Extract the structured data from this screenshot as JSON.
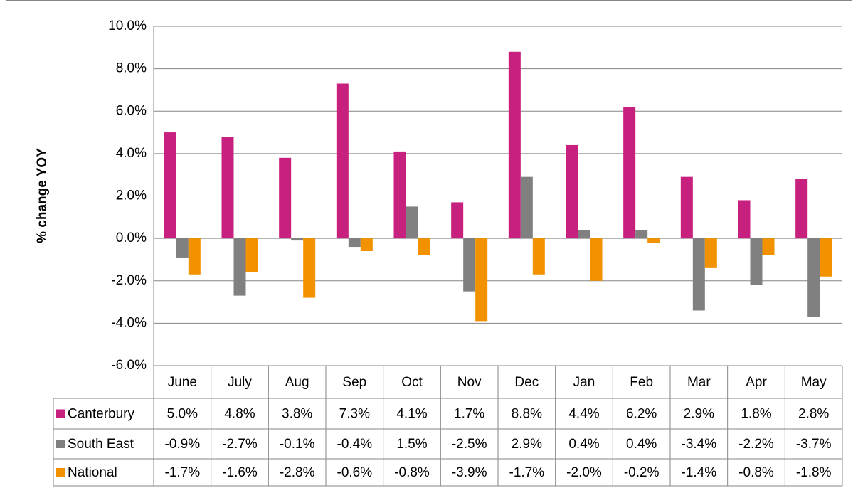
{
  "chart_data": {
    "type": "bar",
    "y_label": "% change YOY",
    "categories": [
      "June",
      "July",
      "Aug",
      "Sep",
      "Oct",
      "Nov",
      "Dec",
      "Jan",
      "Feb",
      "Mar",
      "Apr",
      "May"
    ],
    "series": [
      {
        "name": "Canterbury",
        "color": "#c8207f",
        "values": [
          5.0,
          4.8,
          3.8,
          7.3,
          4.1,
          1.7,
          8.8,
          4.4,
          6.2,
          2.9,
          1.8,
          2.8
        ],
        "value_labels": [
          "5.0%",
          "4.8%",
          "3.8%",
          "7.3%",
          "4.1%",
          "1.7%",
          "8.8%",
          "4.4%",
          "6.2%",
          "2.9%",
          "1.8%",
          "2.8%"
        ]
      },
      {
        "name": "South East",
        "color": "#808080",
        "values": [
          -0.9,
          -2.7,
          -0.1,
          -0.4,
          1.5,
          -2.5,
          2.9,
          0.4,
          0.4,
          -3.4,
          -2.2,
          -3.7
        ],
        "value_labels": [
          "-0.9%",
          "-2.7%",
          "-0.1%",
          "-0.4%",
          "1.5%",
          "-2.5%",
          "2.9%",
          "0.4%",
          "0.4%",
          "-3.4%",
          "-2.2%",
          "-3.7%"
        ]
      },
      {
        "name": "National",
        "color": "#f39200",
        "values": [
          -1.7,
          -1.6,
          -2.8,
          -0.6,
          -0.8,
          -3.9,
          -1.7,
          -2.0,
          -0.2,
          -1.4,
          -0.8,
          -1.8
        ],
        "value_labels": [
          "-1.7%",
          "-1.6%",
          "-2.8%",
          "-0.6%",
          "-0.8%",
          "-3.9%",
          "-1.7%",
          "-2.0%",
          "-0.2%",
          "-1.4%",
          "-0.8%",
          "-1.8%"
        ]
      }
    ],
    "ylim": [
      -6,
      10
    ],
    "yticks": [
      {
        "value": -6,
        "label": "-6.0%"
      },
      {
        "value": -4,
        "label": "-4.0%"
      },
      {
        "value": -2,
        "label": "-2.0%"
      },
      {
        "value": 0,
        "label": "0.0%"
      },
      {
        "value": 2,
        "label": "2.0%"
      },
      {
        "value": 4,
        "label": "4.0%"
      },
      {
        "value": 6,
        "label": "6.0%"
      },
      {
        "value": 8,
        "label": "8.0%"
      },
      {
        "value": 10,
        "label": "10.0%"
      }
    ],
    "grid": true
  }
}
